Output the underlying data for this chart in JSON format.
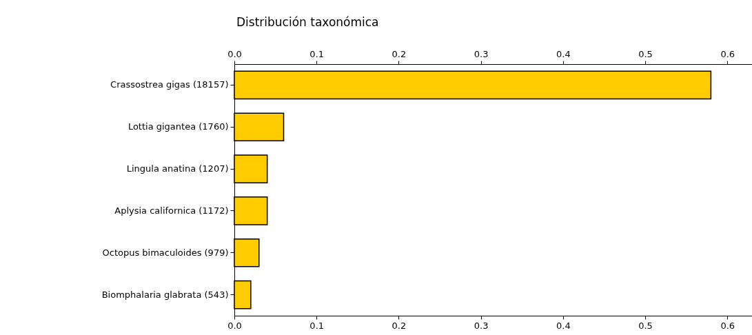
{
  "chart_data": {
    "type": "bar",
    "orientation": "horizontal",
    "title": "Distribución  taxonómica",
    "categories": [
      "Crassostrea gigas (18157)",
      "Lottia gigantea (1760)",
      "Lingula anatina (1207)",
      "Aplysia californica (1172)",
      "Octopus bimaculoides (979)",
      "Biomphalaria glabrata (543)"
    ],
    "values": [
      0.58,
      0.06,
      0.04,
      0.04,
      0.03,
      0.02
    ],
    "color": "#ffcc00",
    "xlim": [
      0,
      0.63
    ],
    "xticks": [
      {
        "value": 0,
        "label": "0.0"
      },
      0.1,
      0.2,
      0.3,
      0.4,
      0.5,
      0.6
    ],
    "x2lim": [
      0,
      0.63
    ],
    "x2ticks": [
      {
        "value": 0,
        "label": "0.0"
      },
      0.1,
      0.2,
      0.3,
      0.4,
      0.5,
      0.6
    ],
    "grid": false
  }
}
